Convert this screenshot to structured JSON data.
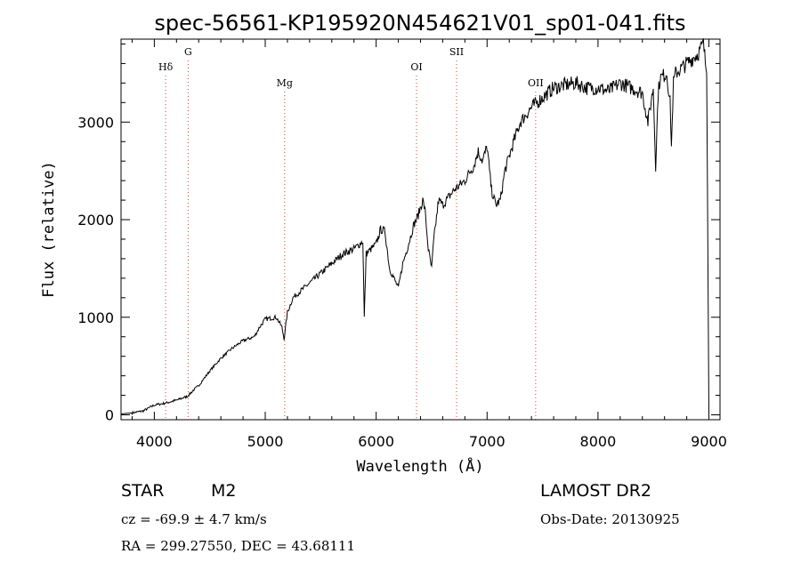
{
  "chart_data": {
    "type": "line",
    "title": "spec-56561-KP195920N454621V01_sp01-041.fits",
    "xlabel": "Wavelength (Å)",
    "ylabel": "Flux (relative)",
    "xlim": [
      3700,
      9100
    ],
    "ylim": [
      -50,
      3850
    ],
    "xticks": [
      4000,
      5000,
      6000,
      7000,
      8000,
      9000
    ],
    "yticks": [
      0,
      1000,
      2000,
      3000
    ],
    "grid": false,
    "series": [
      {
        "x": [
          3700,
          3800,
          3900,
          4000,
          4100,
          4200,
          4300,
          4350,
          4400,
          4500,
          4600,
          4700,
          4800,
          4900,
          4950,
          5000,
          5100,
          5150,
          5170,
          5200,
          5250,
          5300,
          5400,
          5500,
          5600,
          5700,
          5800,
          5880,
          5893,
          5910,
          6000,
          6040,
          6080,
          6120,
          6160,
          6200,
          6240,
          6280,
          6340,
          6380,
          6420,
          6440,
          6470,
          6500,
          6520,
          6563,
          6600,
          6700,
          6800,
          6850,
          6880,
          6920,
          6960,
          7000,
          7040,
          7080,
          7120,
          7160,
          7200,
          7240,
          7300,
          7400,
          7500,
          7600,
          7700,
          7800,
          7900,
          8000,
          8100,
          8200,
          8300,
          8400,
          8450,
          8498,
          8520,
          8542,
          8560,
          8620,
          8650,
          8662,
          8680,
          8700,
          8800,
          8900,
          8950,
          8980,
          9000
        ],
        "values": [
          10,
          20,
          40,
          100,
          120,
          150,
          190,
          250,
          300,
          450,
          580,
          680,
          760,
          800,
          900,
          980,
          1000,
          900,
          780,
          1050,
          1200,
          1250,
          1350,
          1450,
          1550,
          1650,
          1700,
          1780,
          1000,
          1650,
          1750,
          1900,
          1880,
          1500,
          1400,
          1300,
          1550,
          1700,
          1950,
          2050,
          2200,
          2100,
          1700,
          1500,
          1800,
          2200,
          2150,
          2300,
          2400,
          2500,
          2550,
          2700,
          2600,
          2750,
          2300,
          2150,
          2200,
          2500,
          2650,
          2800,
          3000,
          3150,
          3250,
          3350,
          3380,
          3400,
          3350,
          3350,
          3320,
          3400,
          3350,
          3300,
          3000,
          3350,
          2550,
          3300,
          3450,
          3500,
          3200,
          2750,
          3400,
          3500,
          3600,
          3700,
          3800,
          3500,
          30
        ]
      }
    ],
    "annotations": [
      {
        "label": "Hδ",
        "x": 4102,
        "level": 1
      },
      {
        "label": "G",
        "x": 4305,
        "level": 0
      },
      {
        "label": "Mg",
        "x": 5175,
        "level": 2
      },
      {
        "label": "OI",
        "x": 6364,
        "level": 1
      },
      {
        "label": "SII",
        "x": 6725,
        "level": 0
      },
      {
        "label": "OII",
        "x": 7438,
        "level": 2
      }
    ],
    "colors": {
      "line": "#000000",
      "marker_line": "#cc4444",
      "axis": "#000000"
    }
  },
  "info": {
    "class": "STAR",
    "subclass": "M2",
    "survey": "LAMOST DR2",
    "cz": "cz = -69.9 ± 4.7 km/s",
    "obsdate": "Obs-Date: 20130925",
    "radec": "RA = 299.27550, DEC =  43.68111"
  }
}
